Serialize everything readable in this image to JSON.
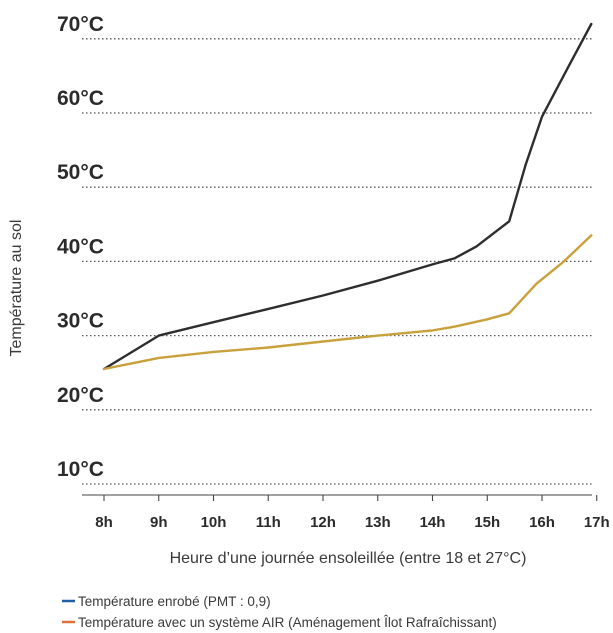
{
  "chart_data": {
    "type": "line",
    "xlabel": "Heure d’une journée ensoleillée (entre 18 et 27°C)",
    "ylabel": "Température au sol",
    "x": [
      "8h",
      "9h",
      "10h",
      "11h",
      "12h",
      "13h",
      "14h",
      "15h",
      "16h",
      "17h"
    ],
    "y_ticks": [
      "10°C",
      "20°C",
      "30°C",
      "40°C",
      "50°C",
      "60°C",
      "70°C"
    ],
    "ylim": [
      10,
      70
    ],
    "grid": "horizontal dotted",
    "legend_position": "bottom-left",
    "series": [
      {
        "name": "Température enrobé (PMT : 0,9)",
        "legend_color": "#1f5fa8",
        "line_color": "#2e2e2e",
        "points": [
          [
            8,
            25.5
          ],
          [
            9,
            30
          ],
          [
            10,
            31.8
          ],
          [
            11,
            33.6
          ],
          [
            12,
            35.4
          ],
          [
            13,
            37.4
          ],
          [
            14,
            39.6
          ],
          [
            14.4,
            40.4
          ],
          [
            14.8,
            42
          ],
          [
            15.4,
            45.4
          ],
          [
            15.7,
            53
          ],
          [
            16,
            59.5
          ],
          [
            16.5,
            66.5
          ],
          [
            16.9,
            72
          ]
        ]
      },
      {
        "name": "Température avec un système AIR (Aménagement Îlot Rafraîchissant)",
        "legend_color": "#e0703a",
        "line_color": "#c9a13c",
        "points": [
          [
            8,
            25.5
          ],
          [
            9,
            27
          ],
          [
            10,
            27.8
          ],
          [
            11,
            28.4
          ],
          [
            12,
            29.2
          ],
          [
            13,
            30
          ],
          [
            14,
            30.7
          ],
          [
            14.4,
            31.2
          ],
          [
            15,
            32.2
          ],
          [
            15.4,
            33
          ],
          [
            15.9,
            37
          ],
          [
            16.4,
            40
          ],
          [
            16.9,
            43.5
          ]
        ]
      }
    ]
  }
}
